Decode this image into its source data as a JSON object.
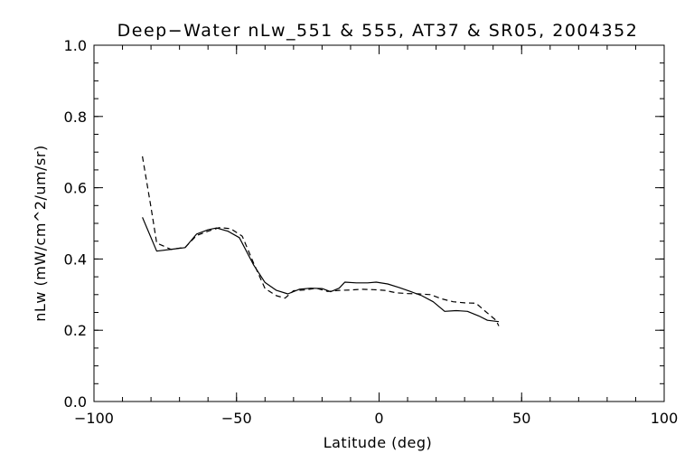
{
  "chart_data": {
    "type": "line",
    "title": "Deep−Water nLw_551 & 555, AT37 & SR05, 2004352",
    "xlabel": "Latitude (deg)",
    "ylabel": "nLw (mW/cm^2/um/sr)",
    "xlim": [
      -100,
      100
    ],
    "ylim": [
      0.0,
      1.0
    ],
    "x_ticks": [
      -100,
      -50,
      0,
      50,
      100
    ],
    "x_tick_labels": [
      "−100",
      "−50",
      "0",
      "50",
      "100"
    ],
    "y_ticks": [
      0.0,
      0.2,
      0.4,
      0.6,
      0.8,
      1.0
    ],
    "y_tick_labels": [
      "0.0",
      "0.2",
      "0.4",
      "0.6",
      "0.8",
      "1.0"
    ],
    "x_minor_step": 10,
    "y_minor_step": 0.05,
    "grid": false,
    "legend": "none",
    "series": [
      {
        "style": "solid",
        "color": "#000000",
        "points": [
          [
            -83,
            0.517
          ],
          [
            -78,
            0.422
          ],
          [
            -72,
            0.428
          ],
          [
            -68,
            0.432
          ],
          [
            -64,
            0.47
          ],
          [
            -60,
            0.482
          ],
          [
            -57,
            0.487
          ],
          [
            -53,
            0.478
          ],
          [
            -49,
            0.46
          ],
          [
            -44,
            0.383
          ],
          [
            -40,
            0.334
          ],
          [
            -36,
            0.312
          ],
          [
            -32,
            0.302
          ],
          [
            -28,
            0.315
          ],
          [
            -24,
            0.318
          ],
          [
            -20,
            0.317
          ],
          [
            -17,
            0.308
          ],
          [
            -14,
            0.318
          ],
          [
            -12,
            0.335
          ],
          [
            -8,
            0.333
          ],
          [
            -4,
            0.333
          ],
          [
            -1,
            0.335
          ],
          [
            3,
            0.33
          ],
          [
            7,
            0.32
          ],
          [
            11,
            0.309
          ],
          [
            15,
            0.297
          ],
          [
            19,
            0.28
          ],
          [
            23,
            0.253
          ],
          [
            27,
            0.255
          ],
          [
            31,
            0.253
          ],
          [
            35,
            0.24
          ],
          [
            38,
            0.228
          ],
          [
            42,
            0.224
          ]
        ]
      },
      {
        "style": "dashed",
        "color": "#000000",
        "points": [
          [
            -83,
            0.688
          ],
          [
            -80,
            0.545
          ],
          [
            -78,
            0.445
          ],
          [
            -73,
            0.427
          ],
          [
            -68,
            0.433
          ],
          [
            -64,
            0.466
          ],
          [
            -60,
            0.478
          ],
          [
            -56,
            0.488
          ],
          [
            -52,
            0.485
          ],
          [
            -48,
            0.464
          ],
          [
            -44,
            0.388
          ],
          [
            -40,
            0.317
          ],
          [
            -36,
            0.297
          ],
          [
            -33,
            0.29
          ],
          [
            -30,
            0.311
          ],
          [
            -26,
            0.313
          ],
          [
            -22,
            0.318
          ],
          [
            -18,
            0.309
          ],
          [
            -14,
            0.312
          ],
          [
            -10,
            0.313
          ],
          [
            -6,
            0.315
          ],
          [
            -2,
            0.314
          ],
          [
            2,
            0.312
          ],
          [
            6,
            0.305
          ],
          [
            10,
            0.303
          ],
          [
            14,
            0.302
          ],
          [
            18,
            0.3
          ],
          [
            22,
            0.288
          ],
          [
            26,
            0.28
          ],
          [
            30,
            0.277
          ],
          [
            34,
            0.276
          ],
          [
            37,
            0.255
          ],
          [
            41,
            0.228
          ],
          [
            42,
            0.212
          ]
        ]
      }
    ]
  }
}
